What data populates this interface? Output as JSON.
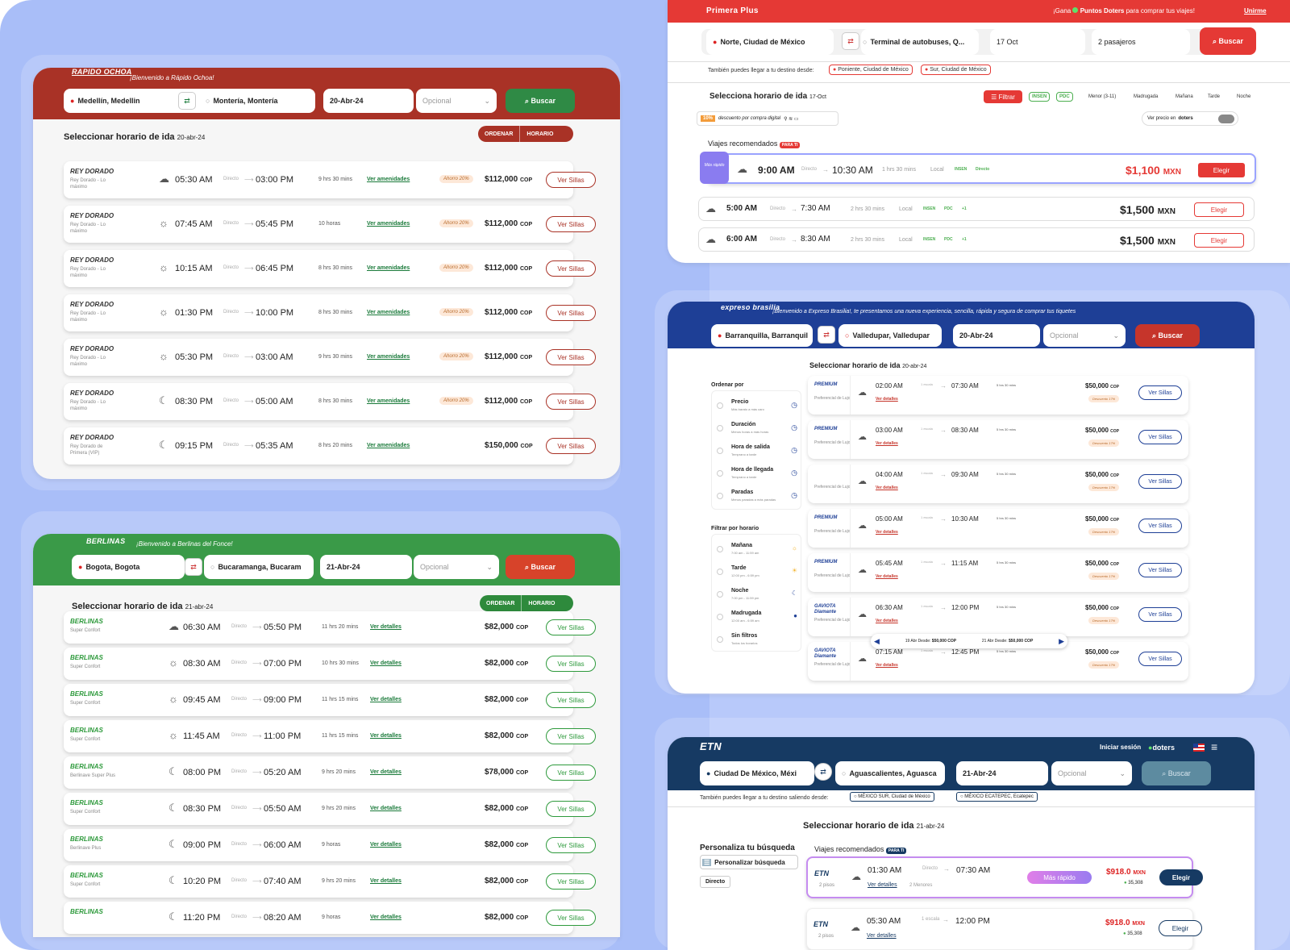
{
  "rapido": {
    "brand": "RAPIDO OCHOA",
    "welcome": "¡Bienvenido a Rápido Ochoa!",
    "origin": "Medellín, Medellin",
    "destination": "Montería, Montería",
    "date": "20-Abr-24",
    "optional": "Opcional",
    "search": "Buscar",
    "title": "Seleccionar horario de ida",
    "title_date": "20-abr-24",
    "sort": "ORDENAR",
    "schedule": "HORARIO",
    "rows": [
      {
        "logo": "REY DORADO",
        "sub": "Rey Dorado - Lo máximo",
        "dep": "05:30 AM",
        "dir": "Directo",
        "arr": "03:00 PM",
        "dur": "9 hrs 30 mins",
        "link": "Ver amenidades",
        "tag": "Ahorro 20%",
        "price": "$112,000",
        "cur": "COP",
        "btn": "Ver Sillas",
        "icon": "sunrise-icon"
      },
      {
        "logo": "REY DORADO",
        "sub": "Rey Dorado - Lo máximo",
        "dep": "07:45 AM",
        "dir": "Directo",
        "arr": "05:45 PM",
        "dur": "10 horas",
        "link": "Ver amenidades",
        "tag": "Ahorro 20%",
        "price": "$112,000",
        "cur": "COP",
        "btn": "Ver Sillas",
        "icon": "sun-icon"
      },
      {
        "logo": "REY DORADO",
        "sub": "Rey Dorado - Lo máximo",
        "dep": "10:15 AM",
        "dir": "Directo",
        "arr": "06:45 PM",
        "dur": "8 hrs 30 mins",
        "link": "Ver amenidades",
        "tag": "Ahorro 20%",
        "price": "$112,000",
        "cur": "COP",
        "btn": "Ver Sillas",
        "icon": "sun-icon"
      },
      {
        "logo": "REY DORADO",
        "sub": "Rey Dorado - Lo máximo",
        "dep": "01:30 PM",
        "dir": "Directo",
        "arr": "10:00 PM",
        "dur": "8 hrs 30 mins",
        "link": "Ver amenidades",
        "tag": "Ahorro 20%",
        "price": "$112,000",
        "cur": "COP",
        "btn": "Ver Sillas",
        "icon": "sun-icon"
      },
      {
        "logo": "REY DORADO",
        "sub": "Rey Dorado - Lo máximo",
        "dep": "05:30 PM",
        "dir": "Directo",
        "arr": "03:00 AM",
        "dur": "9 hrs 30 mins",
        "link": "Ver amenidades",
        "tag": "Ahorro 20%",
        "price": "$112,000",
        "cur": "COP",
        "btn": "Ver Sillas",
        "icon": "sun-icon"
      },
      {
        "logo": "REY DORADO",
        "sub": "Rey Dorado - Lo máximo",
        "dep": "08:30 PM",
        "dir": "Directo",
        "arr": "05:00 AM",
        "dur": "8 hrs 30 mins",
        "link": "Ver amenidades",
        "tag": "Ahorro 20%",
        "price": "$112,000",
        "cur": "COP",
        "btn": "Ver Sillas",
        "icon": "moon-icon"
      },
      {
        "logo": "REY DORADO",
        "sub": "Rey Dorado de Primera (VIP)",
        "dep": "09:15 PM",
        "dir": "Directo",
        "arr": "05:35 AM",
        "dur": "8 hrs 20 mins",
        "link": "Ver amenidades",
        "tag": "",
        "price": "$150,000",
        "cur": "COP",
        "btn": "Ver Sillas",
        "icon": "moon-icon"
      }
    ]
  },
  "berlinas": {
    "brand": "BERLINAS",
    "welcome": "¡Bienvenido a Berlinas del Fonce!",
    "origin": "Bogota, Bogota",
    "destination": "Bucaramanga, Bucaram",
    "date": "21-Abr-24",
    "optional": "Opcional",
    "search": "Buscar",
    "title": "Seleccionar horario de ida",
    "title_date": "21-abr-24",
    "sort": "ORDENAR",
    "schedule": "HORARIO",
    "rows": [
      {
        "logo": "BERLINAS",
        "sub": "Super Confort",
        "dep": "06:30 AM",
        "dir": "Directo",
        "arr": "05:50 PM",
        "dur": "11 hrs 20 mins",
        "link": "Ver detalles",
        "price": "$82,000",
        "cur": "COP",
        "btn": "Ver Sillas",
        "icon": "sunrise-icon"
      },
      {
        "logo": "BERLINAS",
        "sub": "Super Confort",
        "dep": "08:30 AM",
        "dir": "Directo",
        "arr": "07:00 PM",
        "dur": "10 hrs 30 mins",
        "link": "Ver detalles",
        "price": "$82,000",
        "cur": "COP",
        "btn": "Ver Sillas",
        "icon": "sun-icon"
      },
      {
        "logo": "BERLINAS",
        "sub": "Super Confort",
        "dep": "09:45 AM",
        "dir": "Directo",
        "arr": "09:00 PM",
        "dur": "11 hrs 15 mins",
        "link": "Ver detalles",
        "price": "$82,000",
        "cur": "COP",
        "btn": "Ver Sillas",
        "icon": "sun-icon"
      },
      {
        "logo": "BERLINAS",
        "sub": "Super Confort",
        "dep": "11:45 AM",
        "dir": "Directo",
        "arr": "11:00 PM",
        "dur": "11 hrs 15 mins",
        "link": "Ver detalles",
        "price": "$82,000",
        "cur": "COP",
        "btn": "Ver Sillas",
        "icon": "sun-icon"
      },
      {
        "logo": "BERLINAS",
        "sub": "Berlinave Super Plus",
        "dep": "08:00 PM",
        "dir": "Directo",
        "arr": "05:20 AM",
        "dur": "9 hrs 20 mins",
        "link": "Ver detalles",
        "price": "$78,000",
        "cur": "COP",
        "btn": "Ver Sillas",
        "icon": "moon-icon"
      },
      {
        "logo": "BERLINAS",
        "sub": "Super Confort",
        "dep": "08:30 PM",
        "dir": "Directo",
        "arr": "05:50 AM",
        "dur": "9 hrs 20 mins",
        "link": "Ver detalles",
        "price": "$82,000",
        "cur": "COP",
        "btn": "Ver Sillas",
        "icon": "moon-icon"
      },
      {
        "logo": "BERLINAS",
        "sub": "Berlinave Plus",
        "dep": "09:00 PM",
        "dir": "Directo",
        "arr": "06:00 AM",
        "dur": "9 horas",
        "link": "Ver detalles",
        "price": "$82,000",
        "cur": "COP",
        "btn": "Ver Sillas",
        "icon": "moon-icon"
      },
      {
        "logo": "BERLINAS",
        "sub": "Super Confort",
        "dep": "10:20 PM",
        "dir": "Directo",
        "arr": "07:40 AM",
        "dur": "9 hrs 20 mins",
        "link": "Ver detalles",
        "price": "$82,000",
        "cur": "COP",
        "btn": "Ver Sillas",
        "icon": "moon-icon"
      },
      {
        "logo": "BERLINAS",
        "sub": "",
        "dep": "11:20 PM",
        "dir": "Directo",
        "arr": "08:20 AM",
        "dur": "9 horas",
        "link": "Ver detalles",
        "price": "$82,000",
        "cur": "COP",
        "btn": "Ver Sillas",
        "icon": "moon-icon"
      }
    ]
  },
  "primera": {
    "brand": "Primera Plus",
    "promo": "¡Gana",
    "promo_points": "Puntos Doters",
    "promo_rest": "para comprar tus viajes!",
    "join": "Unirme",
    "origin": "Norte, Ciudad de México",
    "destination": "Terminal de autobuses, Q...",
    "date": "17 Oct",
    "passengers": "2 pasajeros",
    "search": "Buscar",
    "also": "También puedes llegar a tu destino desde:",
    "alt1": "Poniente, Ciudad de México",
    "alt2": "Sur, Ciudad de México",
    "title": "Selecciona horario de ida",
    "title_date": "17-Oct",
    "filter": "Filtrar",
    "chips": [
      "INSEN",
      "PDC"
    ],
    "times": [
      "Menor (3-11)",
      "Madrugada",
      "Mañana",
      "Tarde",
      "Noche"
    ],
    "discount": "10%",
    "discount_text": "descuento por compra digital",
    "doters_toggle": "Ver precio en",
    "doters": "doters",
    "recommended": "Viajes recomendados",
    "para_ti": "PARA TI",
    "fast": "Más rápido",
    "rows": [
      {
        "dep": "9:00 AM",
        "dir": "Directo",
        "arr": "10:30 AM",
        "dur": "1 hrs 30 mins",
        "type": "Local",
        "a": "INSEN",
        "b": "Directo",
        "c": "",
        "price": "$1,100",
        "cur": "MXN",
        "btn": "Elegir"
      },
      {
        "dep": "5:00 AM",
        "dir": "Directo",
        "arr": "7:30 AM",
        "dur": "2 hrs 30 mins",
        "type": "Local",
        "a": "INSEN",
        "b": "PDC",
        "c": "+1",
        "price": "$1,500",
        "cur": "MXN",
        "btn": "Elegir"
      },
      {
        "dep": "6:00 AM",
        "dir": "Directo",
        "arr": "8:30 AM",
        "dur": "2 hrs 30 mins",
        "type": "Local",
        "a": "INSEN",
        "b": "PDC",
        "c": "+1",
        "price": "$1,500",
        "cur": "MXN",
        "btn": "Elegir"
      }
    ]
  },
  "brasilia": {
    "brand": "expreso brasilia",
    "welcome": "¡Bienvenido a Expreso Brasilia!, te presentamos una nueva experiencia, sencilla, rápida y segura de comprar tus tiquetes",
    "origin": "Barranquilla, Barranquil",
    "destination": "Valledupar, Valledupar",
    "date": "20-Abr-24",
    "optional": "Opcional",
    "search": "Buscar",
    "title": "Seleccionar horario de ida",
    "title_date": "20-abr-24",
    "order_by": "Ordenar por",
    "orders": [
      {
        "label": "Precio",
        "sub": "Más barato a más caro"
      },
      {
        "label": "Duración",
        "sub": "Menos horas a más horas"
      },
      {
        "label": "Hora de salida",
        "sub": "Temprano a tarde"
      },
      {
        "label": "Hora de llegada",
        "sub": "Temprano a tarde"
      },
      {
        "label": "Paradas",
        "sub": "Menos paradas a más paradas"
      }
    ],
    "filter_by": "Filtrar por horario",
    "filters": [
      {
        "label": "Mañana",
        "sub": "7:00 am - 11:59 am"
      },
      {
        "label": "Tarde",
        "sub": "12:00 pm - 6:59 pm"
      },
      {
        "label": "Noche",
        "sub": "7:00 pm - 11:59 pm"
      },
      {
        "label": "Madrugada",
        "sub": "12:00 am - 6:59 am"
      },
      {
        "label": "Sin filtros",
        "sub": "Todos los horarios"
      }
    ],
    "rows": [
      {
        "logo": "PREMIUM",
        "sub": "Preferencial de Lujo",
        "dep": "02:00 AM",
        "dir": "1 escala",
        "arr": "07:30 AM",
        "dur": "5 hrs 30 mins",
        "link": "Ver detalles",
        "price": "$50,000",
        "cur": "COP",
        "tag": "Descuento 17%",
        "btn": "Ver Sillas"
      },
      {
        "logo": "PREMIUM",
        "sub": "Preferencial de Lujo",
        "dep": "03:00 AM",
        "dir": "1 escala",
        "arr": "08:30 AM",
        "dur": "5 hrs 30 mins",
        "link": "Ver detalles",
        "price": "$50,000",
        "cur": "COP",
        "tag": "Descuento 17%",
        "btn": "Ver Sillas"
      },
      {
        "logo": "",
        "sub": "Preferencial de Lujo",
        "dep": "04:00 AM",
        "dir": "1 escala",
        "arr": "09:30 AM",
        "dur": "5 hrs 30 mins",
        "link": "Ver detalles",
        "price": "$50,000",
        "cur": "COP",
        "tag": "Descuento 17%",
        "btn": "Ver Sillas"
      },
      {
        "logo": "PREMIUM",
        "sub": "Preferencial de Lujo",
        "dep": "05:00 AM",
        "dir": "1 escala",
        "arr": "10:30 AM",
        "dur": "5 hrs 30 mins",
        "link": "Ver detalles",
        "price": "$50,000",
        "cur": "COP",
        "tag": "Descuento 17%",
        "btn": "Ver Sillas"
      },
      {
        "logo": "PREMIUM",
        "sub": "Preferencial de Lujo",
        "dep": "05:45 AM",
        "dir": "1 escala",
        "arr": "11:15 AM",
        "dur": "5 hrs 30 mins",
        "link": "Ver detalles",
        "price": "$50,000",
        "cur": "COP",
        "tag": "Descuento 17%",
        "btn": "Ver Sillas"
      },
      {
        "logo": "GAVIOTA Diamante",
        "sub": "Preferencial de Lujo",
        "dep": "06:30 AM",
        "dir": "1 escala",
        "arr": "12:00 PM",
        "dur": "5 hrs 30 mins",
        "link": "Ver detalles",
        "price": "$50,000",
        "cur": "COP",
        "tag": "Descuento 17%",
        "btn": "Ver Sillas"
      },
      {
        "logo": "GAVIOTA Diamante",
        "sub": "Preferencial de Lujo",
        "dep": "07:15 AM",
        "dir": "1 escala",
        "arr": "12:45 PM",
        "dur": "5 hrs 30 mins",
        "link": "Ver detalles",
        "price": "$50,000",
        "cur": "COP",
        "tag": "Descuento 17%",
        "btn": "Ver Sillas"
      }
    ],
    "popup": {
      "d1": "19 Abr",
      "d2": "21 Abr",
      "desde": "Desde:",
      "p": "$50,000 COP"
    }
  },
  "etn": {
    "brand": "ETN",
    "login": "Iniciar sesión",
    "doters": "doters",
    "origin": "Ciudad De México, Méxi",
    "destination": "Aguascalientes, Aguasca",
    "date": "21-Abr-24",
    "optional": "Opcional",
    "search": "Buscar",
    "also": "También puedes llegar a tu destino saliendo desde:",
    "alt1": "MÉXICO SUR, Ciudad de México",
    "alt2": "MÉXICO ECATEPEC, Ecatepec",
    "title": "Seleccionar horario de ida",
    "title_date": "21-abr-24",
    "personalize": "Personaliza tu búsqueda",
    "personalize_btn": "Personalizar búsqueda",
    "directo": "Directo",
    "recommended": "Viajes recomendados",
    "para_ti": "PARA TI",
    "rows": [
      {
        "logo": "ETN",
        "sub": "2 pisos",
        "dep": "01:30 AM",
        "dir": "Directo",
        "arr": "07:30 AM",
        "link": "Ver detalles",
        "extra": "2 Menores",
        "badge": "Más rápido",
        "price": "$918.0",
        "cur": "MXN",
        "pts": "35,308",
        "btn": "Elegir"
      },
      {
        "logo": "ETN",
        "sub": "2 pisos",
        "dep": "05:30 AM",
        "dir": "1 escala",
        "arr": "12:00 PM",
        "link": "Ver detalles",
        "extra": "",
        "badge": "",
        "price": "$918.0",
        "cur": "MXN",
        "pts": "35,308",
        "btn": "Elegir"
      }
    ]
  },
  "colors": {
    "rapido": "#a93226",
    "berlinas": "#3a9a48",
    "primera": "#e53935",
    "brasilia": "#1e3f96",
    "etn": "#163a63"
  }
}
